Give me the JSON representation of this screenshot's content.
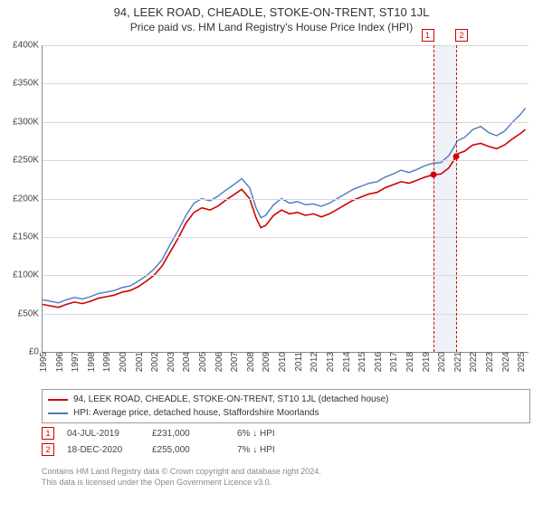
{
  "title_main": "94, LEEK ROAD, CHEADLE, STOKE-ON-TRENT, ST10 1JL",
  "title_sub": "Price paid vs. HM Land Registry's House Price Index (HPI)",
  "chart": {
    "type": "line",
    "background_color": "#ffffff",
    "grid_color": "#d8d8d8",
    "axis_color": "#888888",
    "font_family": "Arial",
    "tick_fontsize": 10,
    "title_fontsize": 13,
    "xlim": [
      1995,
      2025.5
    ],
    "ylim": [
      0,
      400000
    ],
    "ytick_step": 50000,
    "yticks": [
      {
        "v": 0,
        "label": "£0"
      },
      {
        "v": 50000,
        "label": "£50K"
      },
      {
        "v": 100000,
        "label": "£100K"
      },
      {
        "v": 150000,
        "label": "£150K"
      },
      {
        "v": 200000,
        "label": "£200K"
      },
      {
        "v": 250000,
        "label": "£250K"
      },
      {
        "v": 300000,
        "label": "£300K"
      },
      {
        "v": 350000,
        "label": "£350K"
      },
      {
        "v": 400000,
        "label": "£400K"
      }
    ],
    "xticks": [
      "1995",
      "1996",
      "1997",
      "1998",
      "1999",
      "2000",
      "2001",
      "2002",
      "2003",
      "2004",
      "2005",
      "2006",
      "2007",
      "2008",
      "2009",
      "2010",
      "2011",
      "2012",
      "2013",
      "2014",
      "2015",
      "2016",
      "2017",
      "2018",
      "2019",
      "2020",
      "2021",
      "2022",
      "2023",
      "2024",
      "2025"
    ],
    "series": [
      {
        "id": "price_paid",
        "label": "94, LEEK ROAD, CHEADLE, STOKE-ON-TRENT, ST10 1JL (detached house)",
        "color": "#d00000",
        "line_width": 1.6,
        "data": [
          [
            1995,
            62000
          ],
          [
            1995.5,
            60000
          ],
          [
            1996,
            58000
          ],
          [
            1996.5,
            62000
          ],
          [
            1997,
            65000
          ],
          [
            1997.5,
            63000
          ],
          [
            1998,
            66000
          ],
          [
            1998.5,
            70000
          ],
          [
            1999,
            72000
          ],
          [
            1999.5,
            74000
          ],
          [
            2000,
            78000
          ],
          [
            2000.5,
            80000
          ],
          [
            2001,
            85000
          ],
          [
            2001.5,
            92000
          ],
          [
            2002,
            100000
          ],
          [
            2002.5,
            112000
          ],
          [
            2003,
            130000
          ],
          [
            2003.5,
            148000
          ],
          [
            2004,
            168000
          ],
          [
            2004.5,
            182000
          ],
          [
            2005,
            188000
          ],
          [
            2005.5,
            185000
          ],
          [
            2006,
            190000
          ],
          [
            2006.5,
            198000
          ],
          [
            2007,
            205000
          ],
          [
            2007.5,
            212000
          ],
          [
            2008,
            200000
          ],
          [
            2008.4,
            175000
          ],
          [
            2008.7,
            162000
          ],
          [
            2009,
            165000
          ],
          [
            2009.5,
            178000
          ],
          [
            2010,
            185000
          ],
          [
            2010.5,
            180000
          ],
          [
            2011,
            182000
          ],
          [
            2011.5,
            178000
          ],
          [
            2012,
            180000
          ],
          [
            2012.5,
            176000
          ],
          [
            2013,
            180000
          ],
          [
            2013.5,
            186000
          ],
          [
            2014,
            192000
          ],
          [
            2014.5,
            198000
          ],
          [
            2015,
            202000
          ],
          [
            2015.5,
            206000
          ],
          [
            2016,
            208000
          ],
          [
            2016.5,
            214000
          ],
          [
            2017,
            218000
          ],
          [
            2017.5,
            222000
          ],
          [
            2018,
            220000
          ],
          [
            2018.5,
            224000
          ],
          [
            2019,
            228000
          ],
          [
            2019.5,
            231000
          ],
          [
            2020,
            232000
          ],
          [
            2020.5,
            240000
          ],
          [
            2020.96,
            255000
          ],
          [
            2021,
            258000
          ],
          [
            2021.5,
            262000
          ],
          [
            2022,
            270000
          ],
          [
            2022.5,
            272000
          ],
          [
            2023,
            268000
          ],
          [
            2023.5,
            265000
          ],
          [
            2024,
            270000
          ],
          [
            2024.5,
            278000
          ],
          [
            2025,
            285000
          ],
          [
            2025.3,
            290000
          ]
        ]
      },
      {
        "id": "hpi",
        "label": "HPI: Average price, detached house, Staffordshire Moorlands",
        "color": "#4a7bc0",
        "line_width": 1.4,
        "data": [
          [
            1995,
            68000
          ],
          [
            1995.5,
            66000
          ],
          [
            1996,
            64000
          ],
          [
            1996.5,
            68000
          ],
          [
            1997,
            71000
          ],
          [
            1997.5,
            69000
          ],
          [
            1998,
            72000
          ],
          [
            1998.5,
            76000
          ],
          [
            1999,
            78000
          ],
          [
            1999.5,
            80000
          ],
          [
            2000,
            84000
          ],
          [
            2000.5,
            86000
          ],
          [
            2001,
            92000
          ],
          [
            2001.5,
            99000
          ],
          [
            2002,
            108000
          ],
          [
            2002.5,
            120000
          ],
          [
            2003,
            140000
          ],
          [
            2003.5,
            158000
          ],
          [
            2004,
            178000
          ],
          [
            2004.5,
            194000
          ],
          [
            2005,
            200000
          ],
          [
            2005.5,
            197000
          ],
          [
            2006,
            203000
          ],
          [
            2006.5,
            211000
          ],
          [
            2007,
            218000
          ],
          [
            2007.5,
            226000
          ],
          [
            2008,
            214000
          ],
          [
            2008.4,
            188000
          ],
          [
            2008.7,
            175000
          ],
          [
            2009,
            178000
          ],
          [
            2009.5,
            192000
          ],
          [
            2010,
            200000
          ],
          [
            2010.5,
            194000
          ],
          [
            2011,
            196000
          ],
          [
            2011.5,
            192000
          ],
          [
            2012,
            193000
          ],
          [
            2012.5,
            190000
          ],
          [
            2013,
            194000
          ],
          [
            2013.5,
            200000
          ],
          [
            2014,
            206000
          ],
          [
            2014.5,
            212000
          ],
          [
            2015,
            216000
          ],
          [
            2015.5,
            220000
          ],
          [
            2016,
            222000
          ],
          [
            2016.5,
            228000
          ],
          [
            2017,
            232000
          ],
          [
            2017.5,
            237000
          ],
          [
            2018,
            234000
          ],
          [
            2018.5,
            238000
          ],
          [
            2019,
            243000
          ],
          [
            2019.5,
            246000
          ],
          [
            2020,
            247000
          ],
          [
            2020.5,
            256000
          ],
          [
            2020.96,
            272000
          ],
          [
            2021,
            275000
          ],
          [
            2021.5,
            280000
          ],
          [
            2022,
            290000
          ],
          [
            2022.5,
            294000
          ],
          [
            2023,
            286000
          ],
          [
            2023.5,
            282000
          ],
          [
            2024,
            288000
          ],
          [
            2024.5,
            300000
          ],
          [
            2025,
            310000
          ],
          [
            2025.3,
            318000
          ]
        ]
      }
    ],
    "marker_band": {
      "start": 2019.51,
      "end": 2020.96,
      "color": "#e7ecf5"
    },
    "markers": [
      {
        "id": "1",
        "x": 2019.51,
        "y": 231000,
        "color": "#d00000",
        "label_box_y_offset": -18
      },
      {
        "id": "2",
        "x": 2020.96,
        "y": 255000,
        "color": "#d00000",
        "label_box_y_offset": -18
      }
    ]
  },
  "legend": {
    "border_color": "#999999",
    "fontsize": 10
  },
  "markers_table": {
    "rows": [
      {
        "id": "1",
        "date": "04-JUL-2019",
        "price": "£231,000",
        "delta": "6% ↓ HPI"
      },
      {
        "id": "2",
        "date": "18-DEC-2020",
        "price": "£255,000",
        "delta": "7% ↓ HPI"
      }
    ]
  },
  "attribution": {
    "line1": "Contains HM Land Registry data © Crown copyright and database right 2024.",
    "line2": "This data is licensed under the Open Government Licence v3.0."
  }
}
